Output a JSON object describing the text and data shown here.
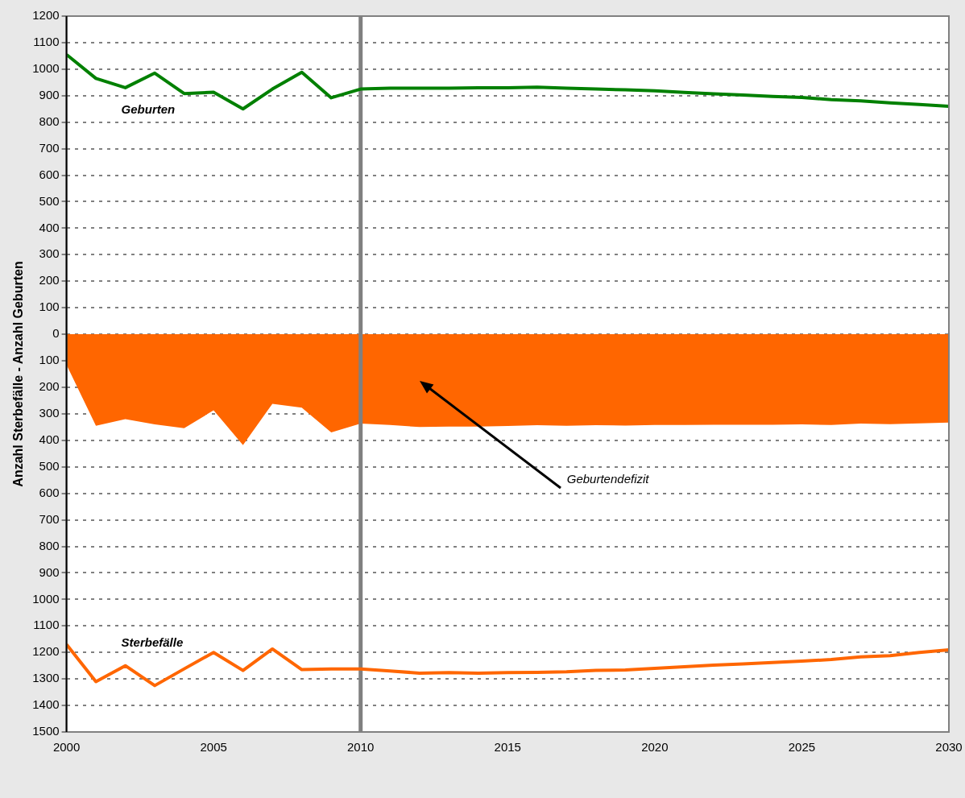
{
  "chart_data": {
    "type": "line",
    "ylabel": "Anzahl Sterbefälle - Anzahl Geburten",
    "x": [
      2000,
      2001,
      2002,
      2003,
      2004,
      2005,
      2006,
      2007,
      2008,
      2009,
      2010,
      2011,
      2012,
      2013,
      2014,
      2015,
      2016,
      2017,
      2018,
      2019,
      2020,
      2021,
      2022,
      2023,
      2024,
      2025,
      2026,
      2027,
      2028,
      2029,
      2030
    ],
    "series": [
      {
        "name": "Geburtendefizit",
        "type": "area",
        "color": "#ff6600",
        "values": [
          -115,
          -345,
          -320,
          -340,
          -354,
          -287,
          -418,
          -262,
          -277,
          -370,
          -337,
          -342,
          -350,
          -348,
          -348,
          -346,
          -343,
          -345,
          -343,
          -344,
          -342,
          -342,
          -341,
          -341,
          -341,
          -340,
          -342,
          -337,
          -339,
          -336,
          -333
        ]
      },
      {
        "name": "Geburten",
        "color": "#008000",
        "values": [
          1055,
          965,
          930,
          985,
          908,
          913,
          850,
          925,
          988,
          892,
          925,
          928,
          928,
          928,
          930,
          930,
          932,
          928,
          925,
          922,
          918,
          912,
          907,
          902,
          897,
          893,
          885,
          880,
          873,
          867,
          860
        ]
      },
      {
        "name": "Sterbefälle",
        "color": "#ff6600",
        "values": [
          -1170,
          -1310,
          -1250,
          -1325,
          -1262,
          -1200,
          -1268,
          -1187,
          -1265,
          -1262,
          -1262,
          -1270,
          -1278,
          -1276,
          -1278,
          -1276,
          -1275,
          -1273,
          -1268,
          -1266,
          -1260,
          -1254,
          -1248,
          -1243,
          -1238,
          -1233,
          -1227,
          -1217,
          -1212,
          -1200,
          -1190
        ]
      }
    ],
    "xlim": [
      2000,
      2030
    ],
    "xticks": [
      2000,
      2005,
      2010,
      2015,
      2020,
      2025,
      2030
    ],
    "ylim": [
      -1500,
      1200
    ],
    "yticks": [
      {
        "value": -1500,
        "label": "1500"
      },
      {
        "value": -1400,
        "label": "1400"
      },
      {
        "value": -1300,
        "label": "1300"
      },
      {
        "value": -1200,
        "label": "1200"
      },
      {
        "value": -1100,
        "label": "1100"
      },
      {
        "value": -1000,
        "label": "1000"
      },
      {
        "value": -900,
        "label": "900"
      },
      {
        "value": -800,
        "label": "800"
      },
      {
        "value": -700,
        "label": "700"
      },
      {
        "value": -600,
        "label": "600"
      },
      {
        "value": -500,
        "label": "500"
      },
      {
        "value": -400,
        "label": "400"
      },
      {
        "value": -300,
        "label": "300"
      },
      {
        "value": -200,
        "label": "200"
      },
      {
        "value": -100,
        "label": "100"
      },
      0,
      100,
      200,
      300,
      400,
      500,
      600,
      700,
      800,
      900,
      1000,
      1100,
      1200
    ],
    "ref_lines": [
      {
        "axis": "x",
        "value": 2010,
        "color": "#808080"
      }
    ],
    "grid": "y",
    "legend": false,
    "marker": "none"
  }
}
